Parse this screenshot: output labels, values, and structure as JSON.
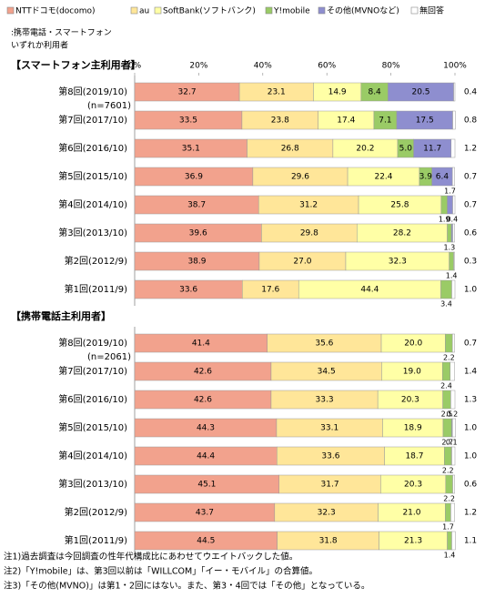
{
  "chart_data": {
    "type": "stacked_barh",
    "header_lines": [
      ":携帯電話・スマートフォン",
      "いずれか利用者"
    ],
    "xlim": [
      0,
      100
    ],
    "xticks": [
      {
        "value": 0,
        "label": "0%"
      },
      {
        "value": 20,
        "label": "20%"
      },
      {
        "value": 40,
        "label": "40%"
      },
      {
        "value": 60,
        "label": "60%"
      },
      {
        "value": 80,
        "label": "80%"
      },
      {
        "value": 100,
        "label": "100%"
      }
    ],
    "grid": false,
    "groups": [
      {
        "title": "【スマートフォン主利用者】",
        "note": "(n=7601)",
        "categories": [
          "第8回(2019/10)",
          "第7回(2017/10)",
          "第6回(2016/10)",
          "第5回(2015/10)",
          "第4回(2014/10)",
          "第3回(2013/10)",
          "第2回(2012/9)",
          "第1回(2011/9)"
        ]
      },
      {
        "title": "【携帯電話主利用者】",
        "note": "(n=2061)",
        "categories": [
          "第8回(2019/10)",
          "第7回(2017/10)",
          "第6回(2016/10)",
          "第5回(2015/10)",
          "第4回(2014/10)",
          "第3回(2013/10)",
          "第2回(2012/9)",
          "第1回(2011/9)"
        ]
      }
    ],
    "series": [
      {
        "name": "NTTドコモ(docomo)",
        "color": "#f2a28d",
        "values": [
          [
            32.7,
            33.5,
            35.1,
            36.9,
            38.7,
            39.6,
            38.9,
            33.6
          ],
          [
            41.4,
            42.6,
            42.6,
            44.3,
            44.4,
            45.1,
            43.7,
            44.5
          ]
        ],
        "value_labels": [
          [
            "32.7",
            "33.5",
            "35.1",
            "36.9",
            "38.7",
            "39.6",
            "38.9",
            "33.6"
          ],
          [
            "41.4",
            "42.6",
            "42.6",
            "44.3",
            "44.4",
            "45.1",
            "43.7",
            "44.5"
          ]
        ]
      },
      {
        "name": "au",
        "color": "#ffe699",
        "values": [
          [
            23.1,
            23.8,
            26.8,
            29.6,
            31.2,
            29.8,
            27.0,
            17.6
          ],
          [
            35.6,
            34.5,
            33.3,
            33.1,
            33.6,
            31.7,
            32.3,
            31.8
          ]
        ],
        "value_labels": [
          [
            "23.1",
            "23.8",
            "26.8",
            "29.6",
            "31.2",
            "29.8",
            "27.0",
            "17.6"
          ],
          [
            "35.6",
            "34.5",
            "33.3",
            "33.1",
            "33.6",
            "31.7",
            "32.3",
            "31.8"
          ]
        ]
      },
      {
        "name": "SoftBank(ソフトバンク)",
        "color": "#ffffa6",
        "values": [
          [
            14.9,
            17.4,
            20.2,
            22.4,
            25.8,
            28.2,
            32.3,
            44.4
          ],
          [
            20.0,
            19.0,
            20.3,
            18.9,
            18.7,
            20.3,
            21.0,
            21.3
          ]
        ],
        "value_labels": [
          [
            "14.9",
            "17.4",
            "20.2",
            "22.4",
            "25.8",
            "28.2",
            "32.3",
            "44.4"
          ],
          [
            "20.0",
            "19.0",
            "20.3",
            "18.9",
            "18.7",
            "20.3",
            "21.0",
            "21.3"
          ]
        ]
      },
      {
        "name": "Y!mobile",
        "color": "#9acb66",
        "values": [
          [
            8.4,
            7.1,
            5.0,
            3.9,
            1.9,
            1.3,
            1.4,
            3.4
          ],
          [
            2.2,
            2.4,
            2.5,
            2.7,
            2.2,
            2.2,
            1.7,
            1.4
          ]
        ],
        "value_labels": [
          [
            "8.4",
            "7.1",
            "5.0",
            "3.9",
            "1.9",
            "1.3",
            "1.4",
            "3.4"
          ],
          [
            "2.2",
            "2.4",
            "2.5",
            "2.7",
            "2.2",
            "2.2",
            "1.7",
            "1.4"
          ]
        ]
      },
      {
        "name": "その他(MVNOなど)",
        "color": "#8e8ecf",
        "values": [
          [
            20.5,
            17.5,
            11.7,
            6.4,
            1.7,
            0.4,
            null,
            null
          ],
          [
            null,
            null,
            null,
            0.2,
            0.1,
            null,
            null,
            null
          ]
        ],
        "value_labels": [
          [
            "20.5",
            "17.5",
            "11.7",
            "6.4",
            "1.7",
            "0.4",
            null,
            null
          ],
          [
            null,
            null,
            null,
            "0.2",
            "0.1",
            null,
            null,
            null
          ]
        ]
      },
      {
        "name": "無回答",
        "color": "#ffffff",
        "values": [
          [
            0.4,
            0.8,
            1.2,
            0.7,
            0.7,
            0.6,
            0.3,
            1.0
          ],
          [
            0.7,
            1.4,
            1.3,
            1.0,
            1.0,
            0.6,
            1.2,
            1.1
          ]
        ],
        "value_labels": [
          [
            "0.4",
            "0.8",
            "1.2",
            "0.7",
            "0.7",
            "0.6",
            "0.3",
            "1.0"
          ],
          [
            "0.7",
            "1.4",
            "1.3",
            "1.0",
            "1.0",
            "0.6",
            "1.2",
            "1.1"
          ]
        ]
      }
    ],
    "notes": [
      "注1)過去調査は今回調査の性年代構成比にあわせてウエイトバックした値。",
      "注2)「Y!mobile」は、第3回以前は「WILLCOM」「イー・モバイル」の合算値。",
      "注3)「その他(MVNO)」は第1・2回にはない。また、第3・4回では「その他」となっている。"
    ]
  }
}
